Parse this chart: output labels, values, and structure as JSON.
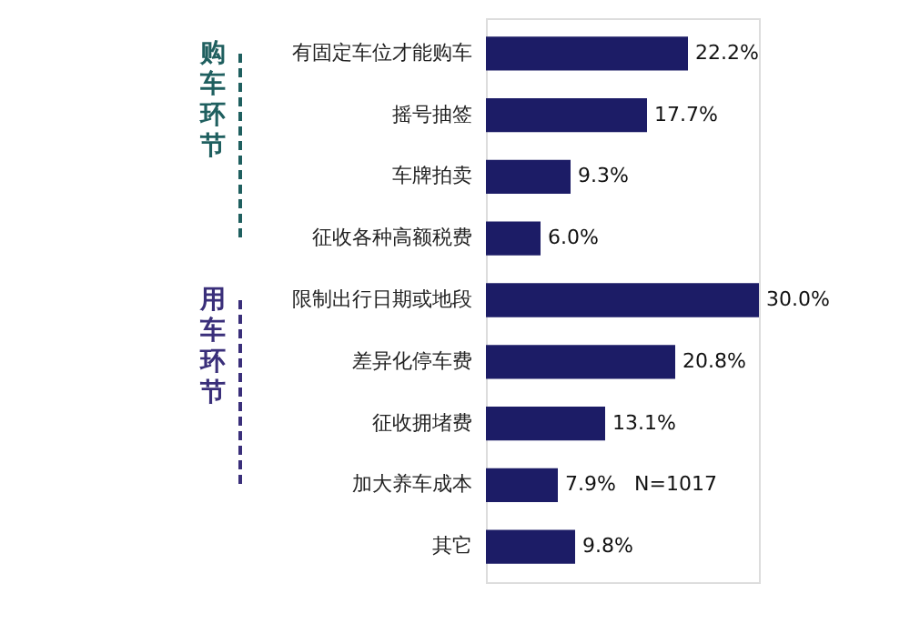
{
  "chart_data": {
    "type": "bar",
    "orientation": "horizontal",
    "data_labels": true,
    "categories": [
      "有固定车位才能购车",
      "摇号抽签",
      "车牌拍卖",
      "征收各种高额税费",
      "限制出行日期或地段",
      "差异化停车费",
      "征收拥堵费",
      "加大养车成本",
      "其它"
    ],
    "values": [
      22.2,
      17.7,
      9.3,
      6.0,
      30.0,
      20.8,
      13.1,
      7.9,
      9.8
    ],
    "value_labels": [
      "22.2%",
      "17.7%",
      "9.3%",
      "6.0%",
      "30.0%",
      "20.8%",
      "13.1%",
      "7.9%",
      "9.8%"
    ],
    "color": "#1c1c66",
    "annotations": [
      "购车环节",
      "用车环节",
      "N=1017"
    ]
  }
}
